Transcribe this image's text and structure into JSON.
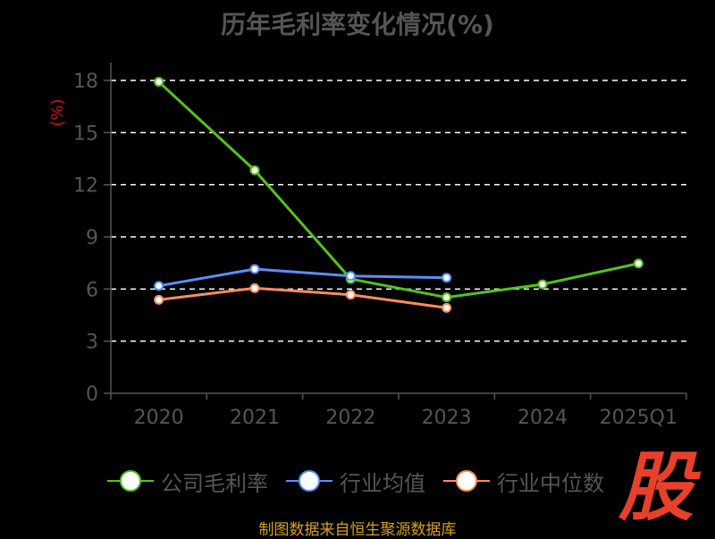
{
  "title": "历年毛利率变化情况(%)",
  "watermark": "股",
  "source": "制图数据来自恒生聚源数据库",
  "chart_data": {
    "type": "line",
    "title": "历年毛利率变化情况(%)",
    "ylabel": "(%)",
    "categories": [
      "2020",
      "2021",
      "2022",
      "2023",
      "2024",
      "2025Q1"
    ],
    "yticks": [
      0,
      3,
      6,
      9,
      12,
      15,
      18
    ],
    "ylim": [
      0,
      18
    ],
    "grid": true,
    "legend_position": "bottom",
    "series": [
      {
        "name": "公司毛利率",
        "color": "#52c41a",
        "values": [
          17.92,
          12.83,
          6.58,
          5.52,
          6.27,
          7.47
        ]
      },
      {
        "name": "行业均值",
        "color": "#5b8ff9",
        "values": [
          6.18,
          7.15,
          6.75,
          6.65,
          null,
          null
        ]
      },
      {
        "name": "行业中位数",
        "color": "#ff8c5a",
        "values": [
          5.38,
          6.05,
          5.67,
          4.92,
          null,
          null
        ]
      }
    ]
  }
}
